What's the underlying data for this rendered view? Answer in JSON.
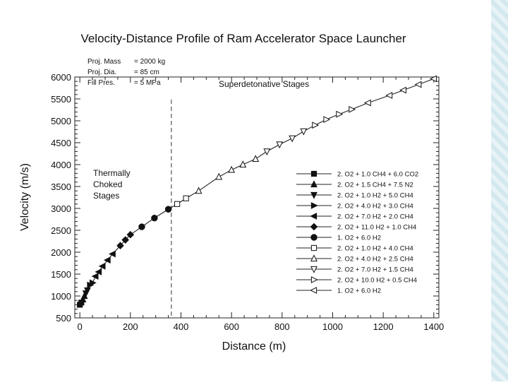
{
  "chart_data": {
    "type": "line",
    "title": "Velocity-Distance Profile of Ram Accelerator Space Launcher",
    "xlabel": "Distance (m)",
    "ylabel": "Velocity (m/s)",
    "xlim": [
      -20,
      1420
    ],
    "ylim": [
      500,
      6000
    ],
    "xticks": [
      "0",
      "200",
      "400",
      "600",
      "800",
      "1000",
      "1200",
      "1400"
    ],
    "yticks": [
      "500",
      "1000",
      "1500",
      "2000",
      "2500",
      "3000",
      "3500",
      "4000",
      "4500",
      "5000",
      "5500",
      "6000"
    ],
    "grid": false,
    "legend_position": "right",
    "params": [
      {
        "label": "Proj. Mass",
        "value": "= 2000 kg"
      },
      {
        "label": "Proj. Dia.",
        "value": "= 85 cm"
      },
      {
        "label": "Fill Pres.",
        "value": "= 5 MPa"
      }
    ],
    "annotations": {
      "left_region": [
        "Thermally",
        "Choked",
        "Stages"
      ],
      "right_region": "Superdetonative Stages",
      "divider_x": 362
    },
    "series": [
      {
        "name": "2. O2 + 1.0 CH4 + 6.0 CO2",
        "marker": "square-filled",
        "x": [
          0,
          6
        ],
        "y": [
          800,
          850
        ]
      },
      {
        "name": "2. O2 + 1.5 CH4 + 7.5 N2",
        "marker": "triangle-up-filled",
        "x": [
          12,
          18
        ],
        "y": [
          920,
          1000
        ]
      },
      {
        "name": "2. O2 + 1.0 H2 + 5.0 CH4",
        "marker": "triangle-down-filled",
        "x": [
          24,
          30
        ],
        "y": [
          1060,
          1130
        ]
      },
      {
        "name": "2. O2 + 4.0 H2 + 3.0 CH4",
        "marker": "triangle-right-filled",
        "x": [
          40,
          50
        ],
        "y": [
          1250,
          1300
        ]
      },
      {
        "name": "2. O2 + 7.0 H2 + 2.0 CH4",
        "marker": "triangle-left-filled",
        "x": [
          62,
          75,
          90,
          110,
          130
        ],
        "y": [
          1450,
          1550,
          1680,
          1820,
          1960
        ]
      },
      {
        "name": "2. O2 + 11.0 H2 + 1.0 CH4",
        "marker": "diamond-filled",
        "x": [
          160,
          180,
          200
        ],
        "y": [
          2150,
          2280,
          2400
        ]
      },
      {
        "name": "1. O2 + 6.0 H2",
        "marker": "circle-filled",
        "x": [
          245,
          295,
          350
        ],
        "y": [
          2580,
          2780,
          2980
        ]
      },
      {
        "name": "2. O2 + 1.0 H2 + 4.0 CH4",
        "marker": "square-open",
        "x": [
          385,
          420
        ],
        "y": [
          3100,
          3230
        ]
      },
      {
        "name": "2. O2 + 4.0 H2 + 2.5 CH4",
        "marker": "triangle-up-open",
        "x": [
          470,
          550,
          600,
          645,
          695
        ],
        "y": [
          3400,
          3720,
          3880,
          4000,
          4130
        ]
      },
      {
        "name": "2. O2 + 7.0 H2 + 1.5 CH4",
        "marker": "triangle-down-open",
        "x": [
          740,
          790,
          840,
          885
        ],
        "y": [
          4300,
          4460,
          4600,
          4760
        ]
      },
      {
        "name": "2. O2 + 10.0 H2 + 0.5 CH4",
        "marker": "triangle-right-open",
        "x": [
          930,
          975,
          1025,
          1075
        ],
        "y": [
          4900,
          5030,
          5150,
          5260
        ]
      },
      {
        "name": "1. O2 + 6.0 H2",
        "marker": "triangle-left-open",
        "x": [
          1140,
          1225,
          1280,
          1340,
          1400
        ],
        "y": [
          5410,
          5580,
          5700,
          5830,
          5960
        ]
      }
    ]
  }
}
